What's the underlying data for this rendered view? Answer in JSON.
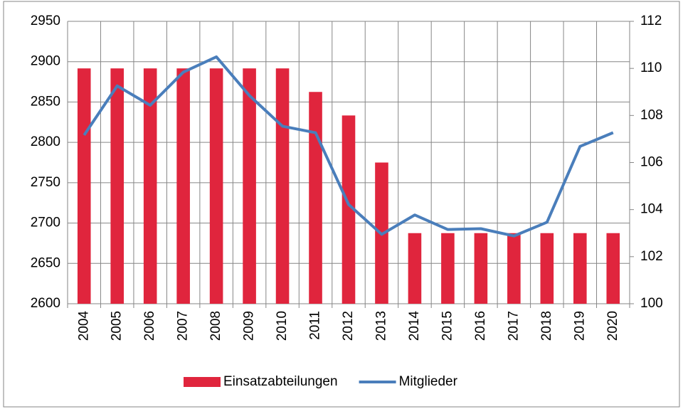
{
  "chart_data": {
    "type": "bar_line",
    "categories": [
      "2004",
      "2005",
      "2006",
      "2007",
      "2008",
      "2009",
      "2010",
      "2011",
      "2012",
      "2013",
      "2014",
      "2015",
      "2016",
      "2017",
      "2018",
      "2019",
      "2020"
    ],
    "series": [
      {
        "name": "Einsatzabteilungen",
        "type": "bar",
        "axis": "y2",
        "color": "#e0253d",
        "values": [
          110,
          110,
          110,
          110,
          110,
          110,
          110,
          109,
          108,
          106,
          103,
          103,
          103,
          103,
          103,
          103,
          103
        ]
      },
      {
        "name": "Mitglieder",
        "type": "line",
        "axis": "y",
        "color": "#4a7ebb",
        "values": [
          2809,
          2870,
          2846,
          2887,
          2906,
          2858,
          2820,
          2812,
          2723,
          2686,
          2710,
          2692,
          2693,
          2684,
          2701,
          2795,
          2812
        ]
      }
    ],
    "ylim": [
      2600,
      2950
    ],
    "yticks": [
      2600,
      2650,
      2700,
      2750,
      2800,
      2850,
      2900,
      2950
    ],
    "y2lim": [
      100,
      112
    ],
    "y2ticks": [
      100,
      102,
      104,
      106,
      108,
      110,
      112
    ],
    "grid": true,
    "legend": "bottom"
  }
}
